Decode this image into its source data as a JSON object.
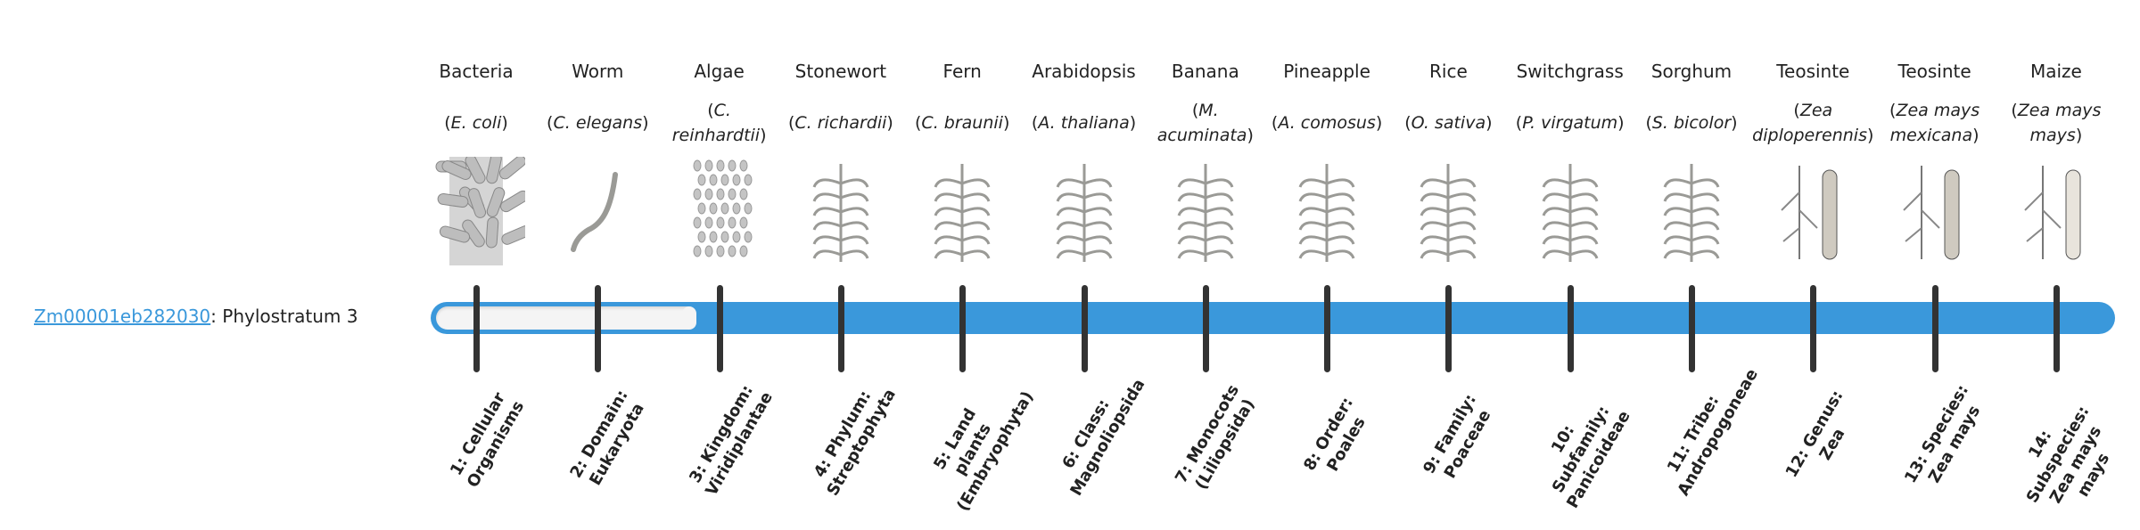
{
  "gene": {
    "id": "Zm00001eb282030",
    "suffix": ": Phylostratum 3",
    "phylostratum": 3
  },
  "colors": {
    "bar": "#3a98db",
    "tick": "#333333",
    "empty": "#f4f4f4",
    "link": "#3a98db"
  },
  "progress": {
    "current_stratum": 3,
    "total_strata": 14
  },
  "organisms": [
    {
      "common": "Bacteria",
      "species": "E. coli",
      "icon": "bacteria-icon",
      "label": "1: Cellular Organisms"
    },
    {
      "common": "Worm",
      "species": "C. elegans",
      "icon": "worm-icon",
      "label": "2: Domain: Eukaryota"
    },
    {
      "common": "Algae",
      "species": "C. reinhardtii",
      "icon": "algae-icon",
      "label": "3: Kingdom: Viridiplantae"
    },
    {
      "common": "Stonewort",
      "species": "C. richardii",
      "icon": "stonewort-icon",
      "label": "4: Phylum: Streptophyta"
    },
    {
      "common": "Fern",
      "species": "C. braunii",
      "icon": "fern-icon",
      "label": "5: Land plants (Embryophyta)"
    },
    {
      "common": "Arabidopsis",
      "species": "A. thaliana",
      "icon": "arabidopsis-icon",
      "label": "6: Class: Magnoliopsida"
    },
    {
      "common": "Banana",
      "species": "M. acuminata",
      "icon": "banana-icon",
      "label": "7: Monocots (Liliopsida)"
    },
    {
      "common": "Pineapple",
      "species": "A. comosus",
      "icon": "pineapple-icon",
      "label": "8: Order: Poales"
    },
    {
      "common": "Rice",
      "species": "O. sativa",
      "icon": "rice-icon",
      "label": "9: Family: Poaceae"
    },
    {
      "common": "Switchgrass",
      "species": "P. virgatum",
      "icon": "switchgrass-icon",
      "label": "10: Subfamily: Panicoideae"
    },
    {
      "common": "Sorghum",
      "species": "S. bicolor",
      "icon": "sorghum-icon",
      "label": "11: Tribe: Andropogoneae"
    },
    {
      "common": "Teosinte",
      "species": "Zea diploperennis",
      "icon": "teosinte-icon",
      "label": "12: Genus: Zea"
    },
    {
      "common": "Teosinte",
      "species": "Zea mays mexicana",
      "icon": "teosinte-mexicana-icon",
      "label": "13: Species: Zea mays"
    },
    {
      "common": "Maize",
      "species": "Zea mays mays",
      "icon": "maize-icon",
      "label": "14: Subspecies: Zea mays mays"
    }
  ]
}
